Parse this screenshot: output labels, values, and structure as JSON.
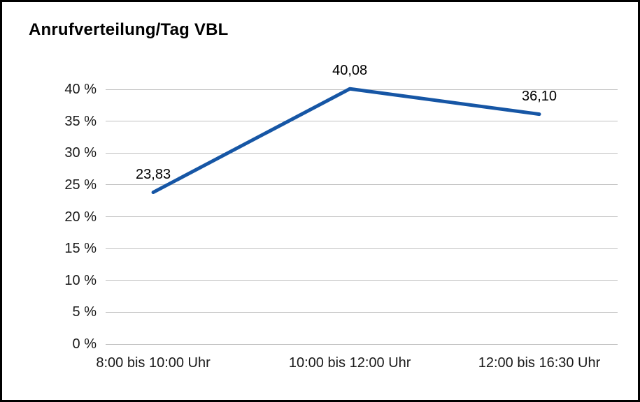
{
  "chart_data": {
    "type": "line",
    "title": "Anrufverteilung/Tag VBL",
    "categories": [
      "8:00 bis 10:00 Uhr",
      "10:00 bis 12:00 Uhr",
      "12:00 bis 16:30 Uhr"
    ],
    "values": [
      23.83,
      40.08,
      36.1
    ],
    "value_labels": [
      "23,83",
      "40,08",
      "36,10"
    ],
    "xlabel": "",
    "ylabel": "",
    "ylim": [
      0,
      40
    ],
    "ytick_step": 5,
    "ytick_labels": [
      "0 %",
      "5 %",
      "10 %",
      "15 %",
      "20 %",
      "25 %",
      "30 %",
      "35 %",
      "40 %"
    ],
    "grid": true,
    "legend": "none",
    "line_color": "#1656a5",
    "gridline_color": "#bfbfbf",
    "text_color": "#1a1a1a",
    "background": "#ffffff",
    "border_color": "#000000"
  }
}
